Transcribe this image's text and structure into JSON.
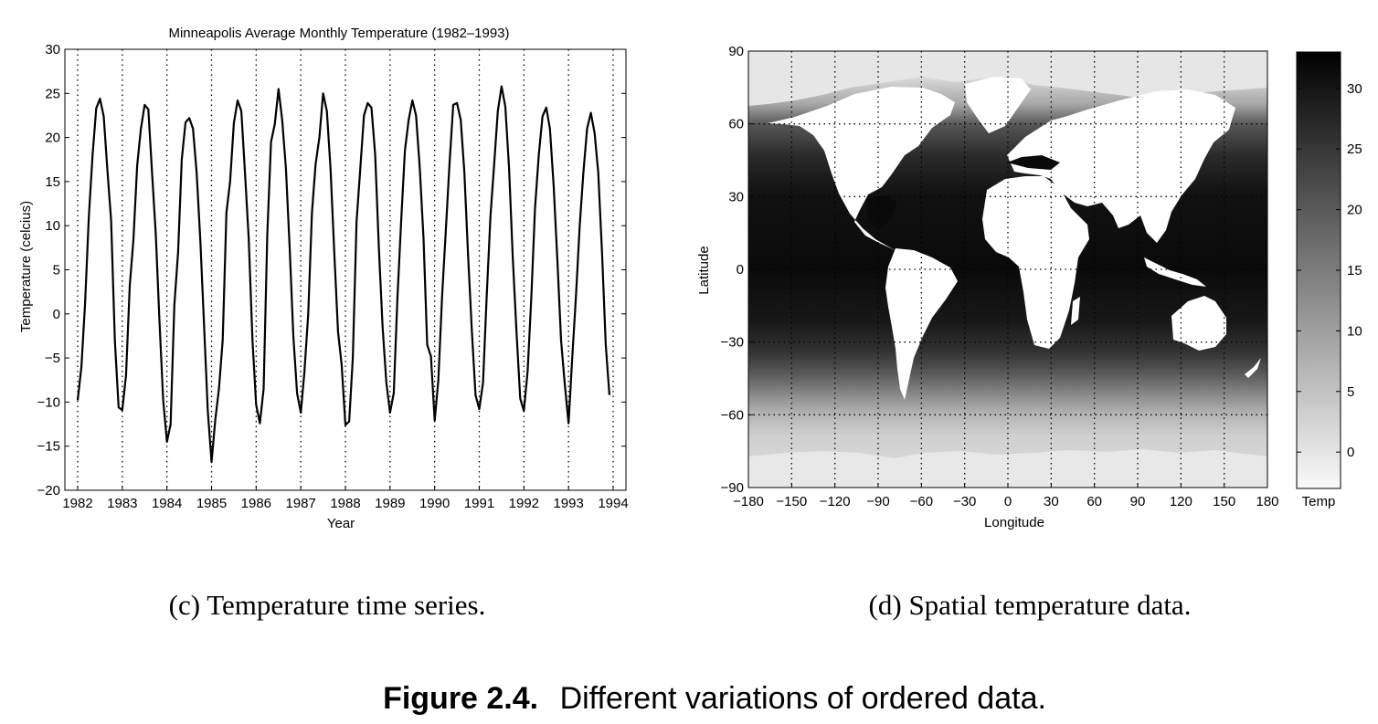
{
  "chart_data": [
    {
      "type": "line",
      "title": "Minneapolis Average Monthly Temperature (1982–1993)",
      "xlabel": "Year",
      "ylabel": "Temperature (celcius)",
      "xlim": [
        1982,
        1994
      ],
      "ylim": [
        -20,
        30
      ],
      "xticks": [
        "1982",
        "1983",
        "1984",
        "1985",
        "1986",
        "1987",
        "1988",
        "1989",
        "1990",
        "1991",
        "1992",
        "1993",
        "1994"
      ],
      "yticks": [
        "30",
        "25",
        "20",
        "15",
        "10",
        "5",
        "0",
        "−5",
        "−10",
        "−15",
        "−20"
      ],
      "grid": "vertical dotted at each year",
      "series": [
        {
          "x_start": 1982.0,
          "x_step": 0.0833,
          "values": [
            -9.8,
            -6.0,
            1.2,
            11.0,
            18.0,
            23.3,
            24.4,
            22.4,
            16.2,
            10.6,
            -3.0,
            -10.6,
            -10.9,
            -7.0,
            3.2,
            8.4,
            16.8,
            21.0,
            23.7,
            23.2,
            16.0,
            9.0,
            -0.8,
            -9.8,
            -14.5,
            -12.5,
            1.0,
            7.0,
            17.5,
            21.7,
            22.2,
            21.0,
            16.0,
            8.2,
            -1.5,
            -11.0,
            -16.8,
            -12.0,
            -8.5,
            -3.0,
            11.5,
            15.0,
            21.6,
            24.2,
            23.0,
            16.0,
            8.5,
            -3.0,
            -10.3,
            -12.4,
            -8.5,
            9.0,
            19.5,
            21.5,
            25.5,
            22.0,
            16.5,
            7.5,
            -2.5,
            -9.0,
            -11.2,
            -6.5,
            0.0,
            11.5,
            17.0,
            20.0,
            25.0,
            23.0,
            16.5,
            7.0,
            -2.0,
            -5.8,
            -12.6,
            -12.2,
            -5.0,
            10.5,
            16.5,
            22.5,
            23.9,
            23.4,
            18.0,
            7.5,
            -1.5,
            -7.8,
            -11.2,
            -9.0,
            2.0,
            10.5,
            18.5,
            22.0,
            24.2,
            22.5,
            16.5,
            8.5,
            -3.5,
            -4.8,
            -12.1,
            -7.5,
            2.0,
            9.5,
            17.0,
            23.7,
            23.9,
            22.0,
            16.0,
            6.5,
            -2.0,
            -9.2,
            -10.8,
            -7.8,
            2.0,
            11.0,
            17.0,
            23.0,
            25.8,
            23.5,
            16.5,
            6.5,
            -2.0,
            -9.6,
            -11.0,
            -6.5,
            2.0,
            12.0,
            18.0,
            22.4,
            23.4,
            21.0,
            14.5,
            6.0,
            -3.0,
            -8.0,
            -12.4,
            -5.0,
            2.0,
            10.0,
            16.0,
            21.0,
            22.8,
            20.5,
            16.0,
            7.0,
            -3.5,
            -9.2
          ]
        }
      ]
    },
    {
      "type": "heatmap",
      "xlabel": "Longitude",
      "ylabel": "Latitude",
      "xlim": [
        -180,
        180
      ],
      "ylim": [
        -90,
        90
      ],
      "xticks": [
        "−180",
        "−150",
        "−120",
        "−90",
        "−60",
        "−30",
        "0",
        "30",
        "60",
        "90",
        "120",
        "150",
        "180"
      ],
      "yticks": [
        "90",
        "60",
        "30",
        "0",
        "−30",
        "−60",
        "−90"
      ],
      "grid": "dotted",
      "colorbar": {
        "label": "Temp",
        "range": [
          -3,
          33
        ],
        "ticks": [
          "30",
          "25",
          "20",
          "15",
          "10",
          "5",
          "0"
        ],
        "colormap": "white (cold) to black (warm)"
      }
    }
  ],
  "captions": {
    "c": "(c) Temperature time series.",
    "d": "(d) Spatial temperature data."
  },
  "figure_caption": {
    "number": "Figure 2.4.",
    "text": "Different variations of ordered data."
  }
}
